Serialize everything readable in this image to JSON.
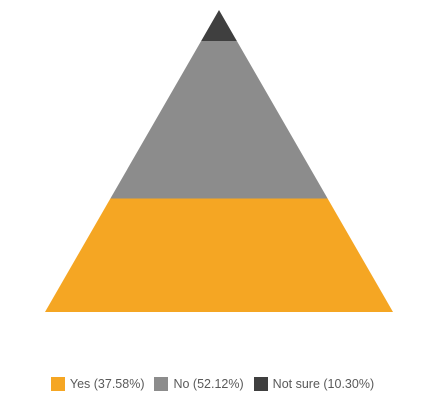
{
  "chart_data": {
    "type": "pyramid",
    "series": [
      {
        "name": "Yes",
        "value": 37.58,
        "label": "Yes (37.58%)",
        "color": "#f5a623"
      },
      {
        "name": "No",
        "value": 52.12,
        "label": "No (52.12%)",
        "color": "#8c8c8c"
      },
      {
        "name": "Not sure",
        "value": 10.3,
        "label": "Not sure (10.30%)",
        "color": "#3f3f3f"
      }
    ],
    "order_bottom_to_top": [
      "Yes",
      "No",
      "Not sure"
    ],
    "legend_position": "bottom-center",
    "title": "",
    "grid": false
  }
}
